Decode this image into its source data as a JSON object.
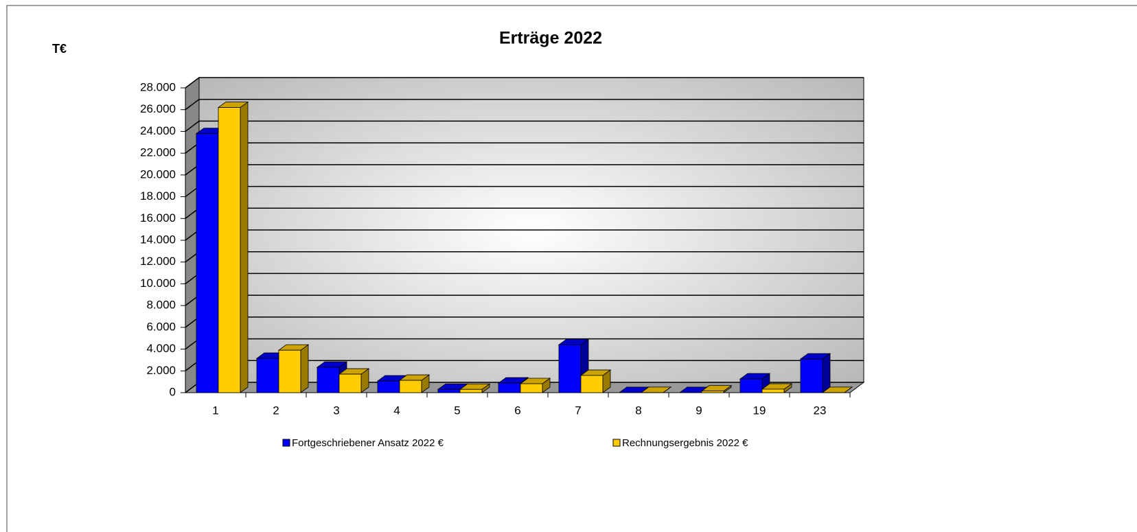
{
  "chart_data": {
    "type": "bar3d",
    "title": "Erträge 2022",
    "y_label": "T€",
    "categories": [
      "1",
      "2",
      "3",
      "4",
      "5",
      "6",
      "7",
      "8",
      "9",
      "19",
      "23"
    ],
    "series": [
      {
        "name": "Fortgeschriebener Ansatz  2022 €",
        "color": "#0000ff",
        "values": [
          23800,
          3150,
          2330,
          1070,
          300,
          880,
          4400,
          10,
          10,
          1260,
          3090
        ]
      },
      {
        "name": "Rechnungsergebnis 2022 €",
        "color": "#ffcc00",
        "values": [
          26200,
          3900,
          1700,
          1130,
          300,
          820,
          1580,
          10,
          150,
          320,
          10
        ]
      }
    ],
    "ylim": [
      0,
      28000
    ],
    "yticks": [
      0,
      {
        "value": 2000,
        "label": "2.000"
      },
      {
        "value": 4000,
        "label": "4.000"
      },
      {
        "value": 6000,
        "label": "6.000"
      },
      {
        "value": 8000,
        "label": "8.000"
      },
      {
        "value": 10000,
        "label": "10.000"
      },
      {
        "value": 12000,
        "label": "12.000"
      },
      {
        "value": 14000,
        "label": "14.000"
      },
      {
        "value": 16000,
        "label": "16.000"
      },
      {
        "value": 18000,
        "label": "18.000"
      },
      {
        "value": 20000,
        "label": "20.000"
      },
      {
        "value": 22000,
        "label": "22.000"
      },
      {
        "value": 24000,
        "label": "24.000"
      },
      {
        "value": 26000,
        "label": "26.000"
      },
      {
        "value": 28000,
        "label": "28.000"
      }
    ],
    "grid": true,
    "legend": "bottom"
  }
}
